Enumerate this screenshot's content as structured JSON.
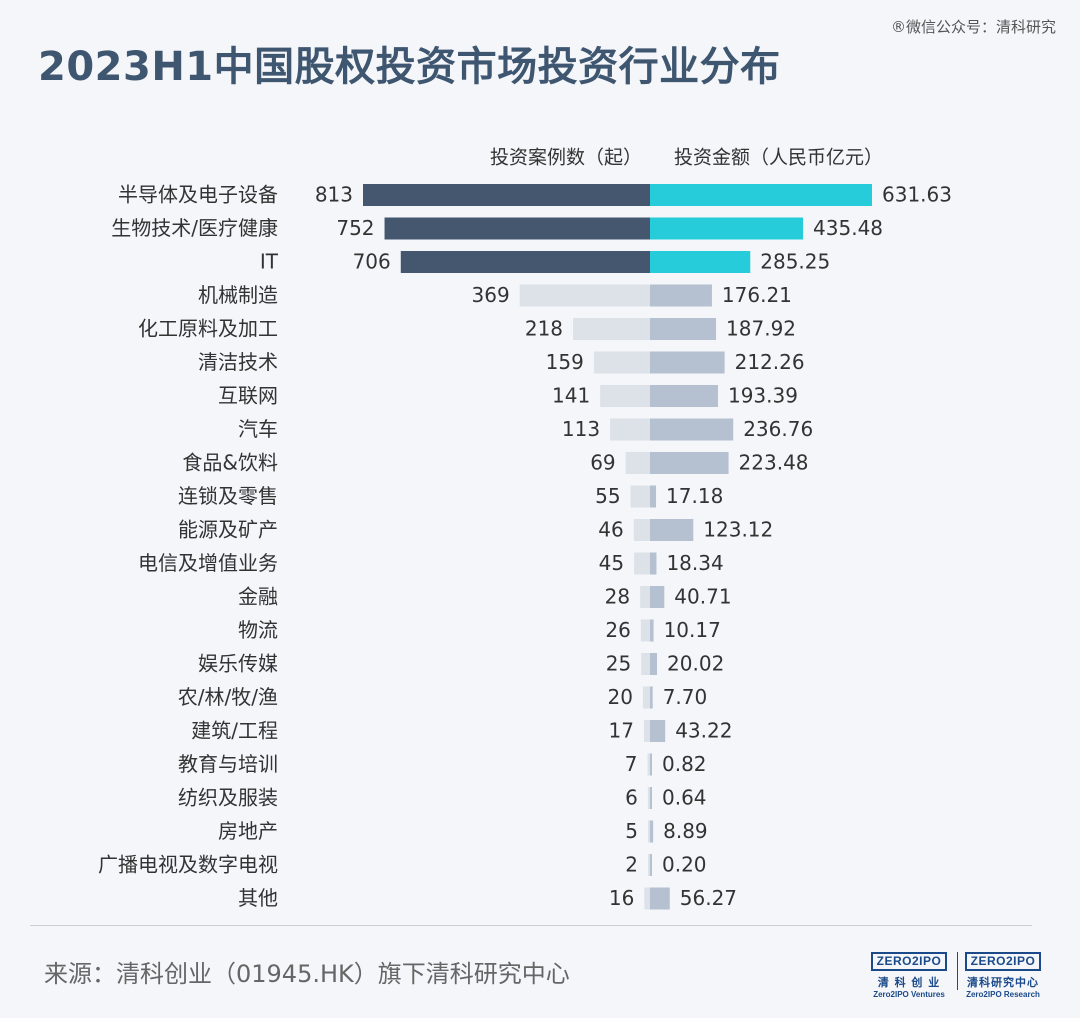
{
  "watermark": "®微信公众号：清科研究",
  "title": "2023H1中国股权投资市场投资行业分布",
  "source": "来源：清科创业（01945.HK）旗下清科研究中心",
  "logos": [
    {
      "box": "ZERO2IPO",
      "cn": "清 科 创 业",
      "en": "Zero2IPO Ventures"
    },
    {
      "box": "ZERO2IPO",
      "cn": "清科研究中心",
      "en": "Zero2IPO Research"
    }
  ],
  "colors": {
    "left_highlight": "#44576f",
    "right_highlight": "#26ccd9",
    "left_normal": "#dde2e9",
    "right_normal": "#b5c0d0"
  },
  "chart_data": {
    "type": "bar",
    "orientation": "horizontal-diverging",
    "left_header": "投资案例数（起）",
    "right_header": "投资金额（人民币亿元）",
    "categories": [
      "半导体及电子设备",
      "生物技术/医疗健康",
      "IT",
      "机械制造",
      "化工原料及加工",
      "清洁技术",
      "互联网",
      "汽车",
      "食品&饮料",
      "连锁及零售",
      "能源及矿产",
      "电信及增值业务",
      "金融",
      "物流",
      "娱乐传媒",
      "农/林/牧/渔",
      "建筑/工程",
      "教育与培训",
      "纺织及服装",
      "房地产",
      "广播电视及数字电视",
      "其他"
    ],
    "series": [
      {
        "name": "投资案例数（起）",
        "values": [
          813,
          752,
          706,
          369,
          218,
          159,
          141,
          113,
          69,
          55,
          46,
          45,
          28,
          26,
          25,
          20,
          17,
          7,
          6,
          5,
          2,
          16
        ],
        "labels": [
          "813",
          "752",
          "706",
          "369",
          "218",
          "159",
          "141",
          "113",
          "69",
          "55",
          "46",
          "45",
          "28",
          "26",
          "25",
          "20",
          "17",
          "7",
          "6",
          "5",
          "2",
          "16"
        ]
      },
      {
        "name": "投资金额（人民币亿元）",
        "values": [
          631.63,
          435.48,
          285.25,
          176.21,
          187.92,
          212.26,
          193.39,
          236.76,
          223.48,
          17.18,
          123.12,
          18.34,
          40.71,
          10.17,
          20.02,
          7.7,
          43.22,
          0.82,
          0.64,
          8.89,
          0.2,
          56.27
        ],
        "labels": [
          "631.63",
          "435.48",
          "285.25",
          "176.21",
          "187.92",
          "212.26",
          "193.39",
          "236.76",
          "223.48",
          "17.18",
          "123.12",
          "18.34",
          "40.71",
          "10.17",
          "20.02",
          "7.70",
          "43.22",
          "0.82",
          "0.64",
          "8.89",
          "0.20",
          "56.27"
        ]
      }
    ],
    "highlighted_count": 3
  }
}
